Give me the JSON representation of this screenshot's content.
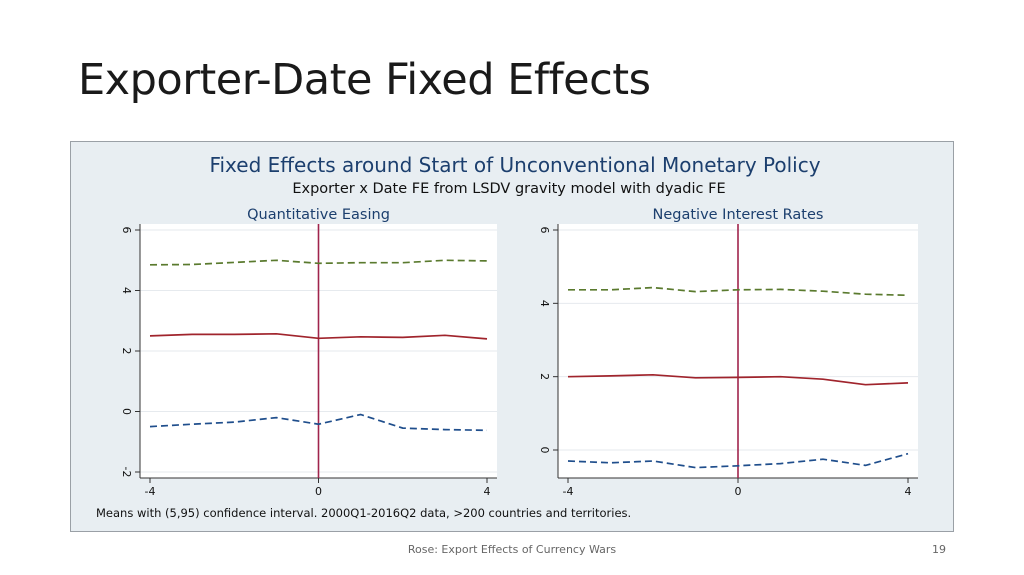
{
  "slide": {
    "title": "Exporter-Date Fixed Effects",
    "footer": "Rose: Export Effects of Currency Wars",
    "page_number": "19"
  },
  "chart_data": {
    "type": "line",
    "title": "Fixed Effects around Start of Unconventional Monetary Policy",
    "subtitle": "Exporter x Date FE from LSDV gravity model with dyadic FE",
    "note": "Means with (5,95) confidence interval.  2000Q1-2016Q2 data, >200 countries and territories.",
    "colors": {
      "upper": "#5a7a2e",
      "mean": "#a0242c",
      "lower": "#1f4e8c",
      "event": "#a0244c"
    },
    "panels": [
      {
        "title": "Quantitative Easing",
        "xlim": [
          -4,
          4
        ],
        "ylim": [
          -2,
          6
        ],
        "xticks": [
          -4,
          0,
          4
        ],
        "yticks": [
          -2,
          0,
          2,
          4,
          6
        ],
        "event_x": 0,
        "x": [
          -4,
          -3,
          -2,
          -1,
          0,
          1,
          2,
          3,
          4
        ],
        "series": [
          {
            "key": "upper",
            "style": "dashed",
            "values": [
              4.85,
              4.86,
              4.93,
              5.0,
              4.9,
              4.92,
              4.92,
              5.0,
              4.98
            ]
          },
          {
            "key": "mean",
            "style": "solid",
            "values": [
              2.5,
              2.55,
              2.55,
              2.57,
              2.42,
              2.47,
              2.45,
              2.52,
              2.4
            ]
          },
          {
            "key": "lower",
            "style": "dashed",
            "values": [
              -0.5,
              -0.42,
              -0.35,
              -0.2,
              -0.42,
              -0.1,
              -0.55,
              -0.6,
              -0.62
            ]
          }
        ]
      },
      {
        "title": "Negative Interest Rates",
        "xlim": [
          -4,
          4
        ],
        "ylim": [
          -0.6,
          6
        ],
        "xticks": [
          -4,
          0,
          4
        ],
        "yticks": [
          0,
          2,
          4,
          6
        ],
        "event_x": 0,
        "x": [
          -4,
          -3,
          -2,
          -1,
          0,
          1,
          2,
          3,
          4
        ],
        "series": [
          {
            "key": "upper",
            "style": "dashed",
            "values": [
              4.37,
              4.37,
              4.43,
              4.32,
              4.37,
              4.38,
              4.33,
              4.25,
              4.22
            ]
          },
          {
            "key": "mean",
            "style": "solid",
            "values": [
              2.0,
              2.02,
              2.05,
              1.97,
              1.98,
              2.0,
              1.93,
              1.78,
              1.83
            ]
          },
          {
            "key": "lower",
            "style": "dashed",
            "values": [
              -0.3,
              -0.35,
              -0.3,
              -0.48,
              -0.43,
              -0.37,
              -0.25,
              -0.42,
              -0.1
            ]
          }
        ]
      }
    ]
  }
}
